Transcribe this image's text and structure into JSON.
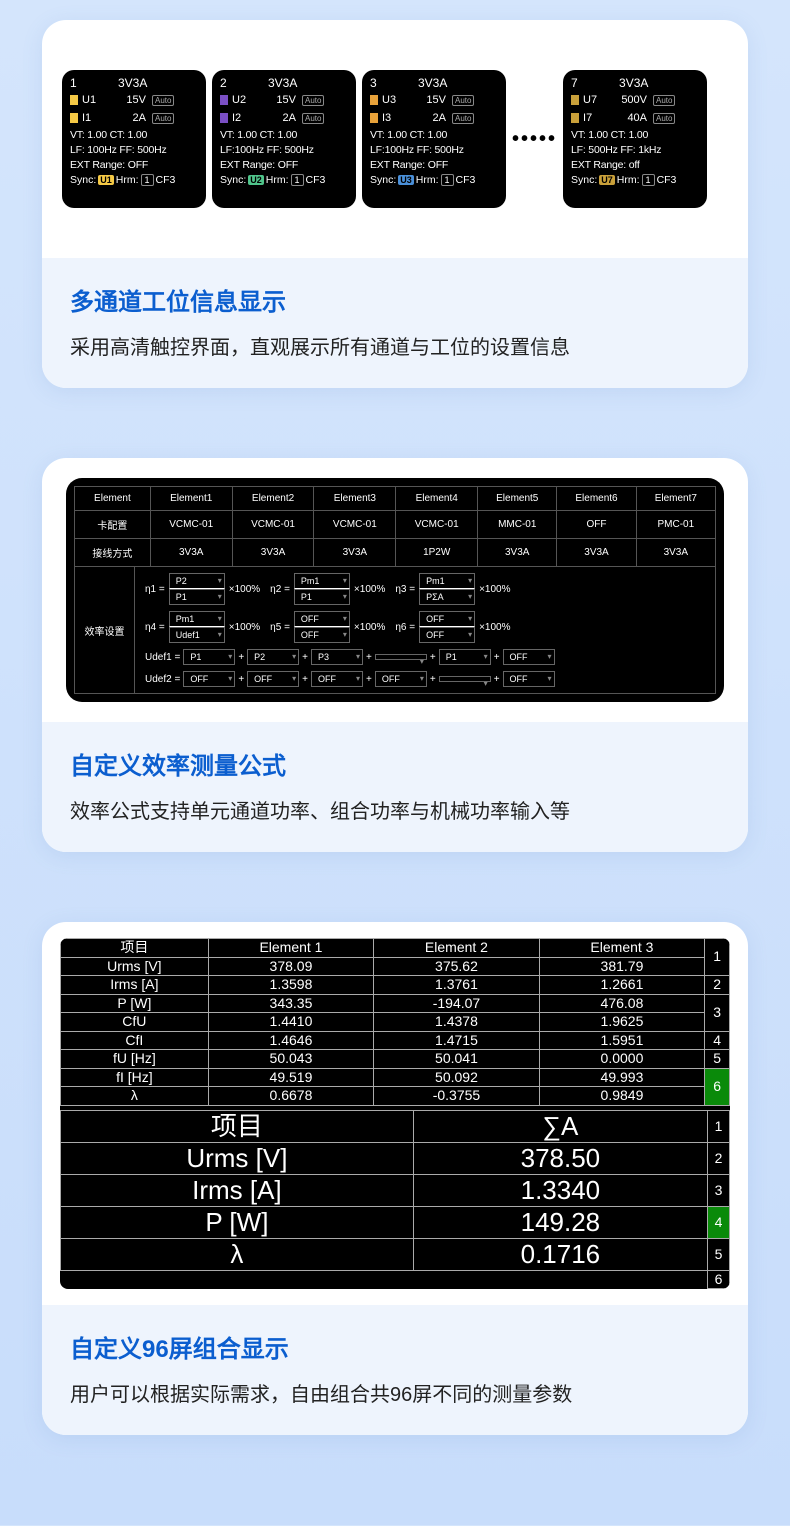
{
  "section1": {
    "title": "多通道工位信息显示",
    "desc": "采用高清触控界面，直观展示所有通道与工位的设置信息",
    "channels": [
      {
        "num": "1",
        "mode": "3V3A",
        "u_label": "U1",
        "u_val": "15V",
        "u_color": "#f5c945",
        "i_label": "I1",
        "i_val": "2A",
        "i_color": "#f5c945",
        "vt": "VT:  1.00 CT:  1.00",
        "lf": "LF:   100Hz FF:   500Hz",
        "ext": "EXT Range:  OFF",
        "sync": "U1",
        "sync_color": "#f5c945",
        "hrm": "1",
        "cf": "CF3"
      },
      {
        "num": "2",
        "mode": "3V3A",
        "u_label": "U2",
        "u_val": "15V",
        "u_color": "#7a4fc4",
        "i_label": "I2",
        "i_val": "2A",
        "i_color": "#7a4fc4",
        "vt": "VT:  1.00 CT:  1.00",
        "lf": "LF:100Hz FF: 500Hz",
        "ext": "EXT Range:  OFF",
        "sync": "U2",
        "sync_color": "#4fc48a",
        "hrm": "1",
        "cf": "CF3"
      },
      {
        "num": "3",
        "mode": "3V3A",
        "u_label": "U3",
        "u_val": "15V",
        "u_color": "#e8a23a",
        "i_label": "I3",
        "i_val": "2A",
        "i_color": "#e8a23a",
        "vt": "VT:  1.00 CT:  1.00",
        "lf": "LF:100Hz FF: 500Hz",
        "ext": "EXT Range:  OFF",
        "sync": "U3",
        "sync_color": "#4a8fd8",
        "hrm": "1",
        "cf": "CF3"
      },
      {
        "num": "7",
        "mode": "3V3A",
        "u_label": "U7",
        "u_val": "500V",
        "u_color": "#c9a03a",
        "i_label": "I7",
        "i_val": "40A",
        "i_color": "#c9a03a",
        "vt": "VT:    1.00  CT:    1.00",
        "lf": "LF:  500Hz  FF:    1kHz",
        "ext": "EXT Range:  off",
        "sync": "U7",
        "sync_color": "#c9a03a",
        "hrm": "1",
        "cf": "CF3"
      }
    ]
  },
  "section2": {
    "title": "自定义效率测量公式",
    "desc": "效率公式支持单元通道功率、组合功率与机械功率输入等",
    "headers": [
      "Element",
      "Element1",
      "Element2",
      "Element3",
      "Element4",
      "Element5",
      "Element6",
      "Element7"
    ],
    "row_card": [
      "卡配置",
      "VCMC-01",
      "VCMC-01",
      "VCMC-01",
      "VCMC-01",
      "MMC-01",
      "OFF",
      "PMC-01"
    ],
    "row_wire": [
      "接线方式",
      "3V3A",
      "3V3A",
      "3V3A",
      "1P2W",
      "3V3A",
      "3V3A",
      "3V3A"
    ],
    "eff_label": "效率设置",
    "eta": [
      {
        "name": "η1 =",
        "top": "P2",
        "bot": "P1"
      },
      {
        "name": "η2 =",
        "top": "Pm1",
        "bot": "P1"
      },
      {
        "name": "η3 =",
        "top": "Pm1",
        "bot": "PΣA"
      },
      {
        "name": "η4 =",
        "top": "Pm1",
        "bot": "Udef1"
      },
      {
        "name": "η5 =",
        "top": "OFF",
        "bot": "OFF"
      },
      {
        "name": "η6 =",
        "top": "OFF",
        "bot": "OFF"
      }
    ],
    "pct": "×100%",
    "udef1": {
      "label": "Udef1 =",
      "vals": [
        "P1",
        "P2",
        "P3",
        "",
        "P1",
        "OFF"
      ]
    },
    "udef2": {
      "label": "Udef2 =",
      "vals": [
        "OFF",
        "OFF",
        "OFF",
        "OFF",
        "",
        "OFF"
      ]
    }
  },
  "section3": {
    "title": "自定义96屏组合显示",
    "desc": "用户可以根据实际需求，自由组合共96屏不同的测量参数",
    "top_headers": [
      "项目",
      "Element 1",
      "Element 2",
      "Element 3"
    ],
    "top_rows": [
      [
        "Urms [V]",
        "378.09",
        "375.62",
        "381.79"
      ],
      [
        "Irms [A]",
        "1.3598",
        "1.3761",
        "1.2661"
      ],
      [
        "P [W]",
        "343.35",
        "-194.07",
        "476.08"
      ],
      [
        "CfU",
        "1.4410",
        "1.4378",
        "1.9625"
      ],
      [
        "CfI",
        "1.4646",
        "1.4715",
        "1.5951"
      ],
      [
        "fU [Hz]",
        "50.043",
        "50.041",
        "0.0000"
      ],
      [
        "fI [Hz]",
        "49.519",
        "50.092",
        "49.993"
      ],
      [
        "λ",
        "0.6678",
        "-0.3755",
        "0.9849"
      ]
    ],
    "top_side": [
      "1",
      "2",
      "3",
      "4",
      "5",
      "6"
    ],
    "top_side_active": 5,
    "big_headers": [
      "项目",
      "∑A"
    ],
    "big_rows": [
      [
        "Urms [V]",
        "378.50"
      ],
      [
        "Irms [A]",
        "1.3340"
      ],
      [
        "P [W]",
        "149.28"
      ],
      [
        "λ",
        "0.1716"
      ]
    ],
    "big_side": [
      "1",
      "2",
      "3",
      "4",
      "5",
      "6"
    ],
    "big_side_active": 3
  }
}
